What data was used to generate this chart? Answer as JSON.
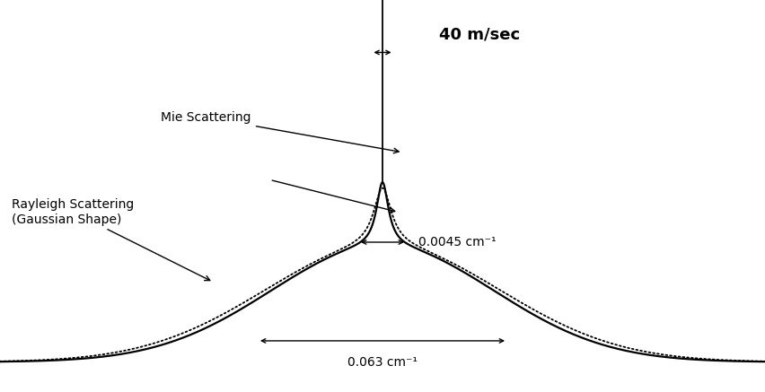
{
  "background_color": "#ffffff",
  "x_range": [
    -0.095,
    0.095
  ],
  "y_range": [
    -0.12,
    1.45
  ],
  "rayleigh_color": "#000000",
  "mie_color": "#000000",
  "rayleigh_linewidth": 1.6,
  "mie_linewidth": 1.3,
  "annotation_40msec": "40 m/sec",
  "annotation_0045": "0.0045 cm⁻¹",
  "annotation_063": "0.063 cm⁻¹",
  "annotation_mie": "Mie Scattering",
  "annotation_rayleigh": "Rayleigh Scattering\n(Gaussian Shape)"
}
